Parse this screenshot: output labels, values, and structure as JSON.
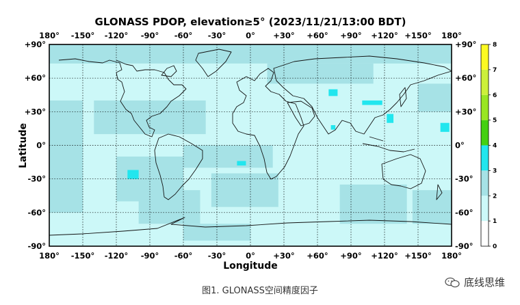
{
  "chart_data": {
    "type": "heatmap",
    "title": "GLONASS PDOP, elevation≥5° (2023/11/21/13:00 BDT)",
    "xlabel": "Longitude",
    "ylabel": "Latitude",
    "xlim": [
      -180,
      180
    ],
    "ylim": [
      -90,
      90
    ],
    "x_ticks": [
      -180,
      -150,
      -120,
      -90,
      -60,
      -30,
      0,
      30,
      60,
      90,
      120,
      150,
      180
    ],
    "x_tick_labels": [
      "180°",
      "-150°",
      "-120°",
      "-90°",
      "-60°",
      "-30°",
      "0°",
      "+30°",
      "+60°",
      "+90°",
      "+120°",
      "+150°",
      "180°"
    ],
    "y_ticks": [
      90,
      60,
      30,
      0,
      -30,
      -60,
      -90
    ],
    "y_tick_labels": [
      "+90°",
      "+60°",
      "+30°",
      "0°",
      "-30°",
      "-60°",
      "-90°"
    ],
    "grid": true,
    "colorbar": {
      "min": 0,
      "max": 8,
      "ticks": [
        0,
        1,
        2,
        3,
        4,
        5,
        6,
        7,
        8
      ],
      "bands": [
        {
          "from": 0,
          "to": 1,
          "color": "#ffffff"
        },
        {
          "from": 1,
          "to": 2,
          "color": "#ccf8f8"
        },
        {
          "from": 2,
          "to": 3,
          "color": "#a6e2e6"
        },
        {
          "from": 3,
          "to": 4,
          "color": "#22e6ee"
        },
        {
          "from": 4,
          "to": 5,
          "color": "#44d012"
        },
        {
          "from": 5,
          "to": 6,
          "color": "#99e622"
        },
        {
          "from": 6,
          "to": 7,
          "color": "#ccf03a"
        },
        {
          "from": 7,
          "to": 8,
          "color": "#fcfa22"
        }
      ]
    },
    "pdop_regions": [
      {
        "level": 2.5,
        "lon": [
          -180,
          180
        ],
        "lat": [
          73,
          90
        ]
      },
      {
        "level": 2.5,
        "lon": [
          -180,
          -150
        ],
        "lat": [
          -60,
          40
        ]
      },
      {
        "level": 2.5,
        "lon": [
          -140,
          -40
        ],
        "lat": [
          10,
          40
        ]
      },
      {
        "level": 2.5,
        "lon": [
          -120,
          -60
        ],
        "lat": [
          -50,
          -10
        ]
      },
      {
        "level": 2.5,
        "lon": [
          -100,
          -45
        ],
        "lat": [
          -70,
          -40
        ]
      },
      {
        "level": 2.5,
        "lon": [
          -60,
          20
        ],
        "lat": [
          -20,
          0
        ]
      },
      {
        "level": 2.5,
        "lon": [
          -35,
          25
        ],
        "lat": [
          -55,
          -25
        ]
      },
      {
        "level": 2.5,
        "lon": [
          15,
          110
        ],
        "lat": [
          55,
          73
        ]
      },
      {
        "level": 2.5,
        "lon": [
          80,
          140
        ],
        "lat": [
          -70,
          -35
        ]
      },
      {
        "level": 2.5,
        "lon": [
          145,
          180
        ],
        "lat": [
          -70,
          -40
        ]
      },
      {
        "level": 2.5,
        "lon": [
          -60,
          0
        ],
        "lat": [
          -85,
          -70
        ]
      },
      {
        "level": 2.5,
        "lon": [
          150,
          180
        ],
        "lat": [
          30,
          55
        ]
      },
      {
        "level": 3.5,
        "lon": [
          -110,
          -100
        ],
        "lat": [
          -30,
          -22
        ]
      },
      {
        "level": 3.5,
        "lon": [
          -12,
          -4
        ],
        "lat": [
          -18,
          -14
        ]
      },
      {
        "level": 3.5,
        "lon": [
          70,
          78
        ],
        "lat": [
          44,
          50
        ]
      },
      {
        "level": 3.5,
        "lon": [
          100,
          118
        ],
        "lat": [
          36,
          40
        ]
      },
      {
        "level": 3.5,
        "lon": [
          122,
          128
        ],
        "lat": [
          20,
          28
        ]
      },
      {
        "level": 3.5,
        "lon": [
          170,
          178
        ],
        "lat": [
          12,
          20
        ]
      },
      {
        "level": 3.5,
        "lon": [
          72,
          76
        ],
        "lat": [
          14,
          18
        ]
      }
    ]
  },
  "caption": "图1. GLONASS空间精度因子",
  "watermark": "底线思维"
}
